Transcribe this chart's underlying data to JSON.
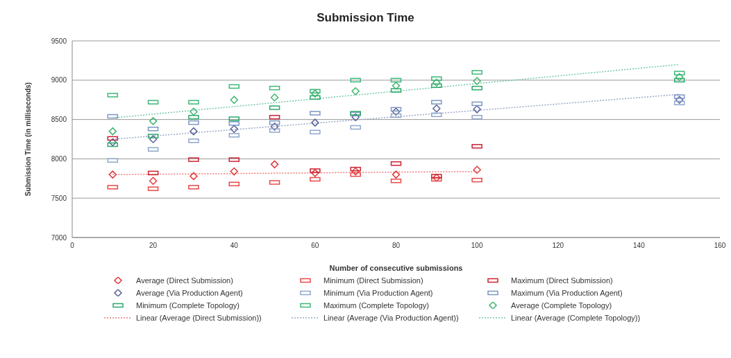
{
  "chart_data": {
    "type": "scatter",
    "title": "Submission Time",
    "xlabel": "Number of consecutive submissions",
    "ylabel": "Submission Time (in milliseconds)",
    "xlim": [
      0,
      160
    ],
    "xticks": [
      0,
      20,
      40,
      60,
      80,
      100,
      120,
      140,
      160
    ],
    "ylim": [
      7000,
      9500
    ],
    "yticks": [
      7000,
      7500,
      8000,
      8500,
      9000,
      9500
    ],
    "grid": "y",
    "legend": "bottom",
    "x": [
      10,
      20,
      30,
      40,
      50,
      60,
      70,
      80,
      90,
      100,
      150
    ],
    "series": [
      {
        "name": "Average (Direct Submission)",
        "marker": "diamond",
        "color": "#e03a3a",
        "values": [
          7800,
          7720,
          7780,
          7840,
          7930,
          7820,
          7840,
          7800,
          7760,
          7860,
          null
        ]
      },
      {
        "name": "Minimum (Direct Submission)",
        "marker": "square",
        "color": "#e84848",
        "values": [
          7640,
          7620,
          7640,
          7680,
          7700,
          7740,
          7800,
          7720,
          7740,
          7730,
          null
        ]
      },
      {
        "name": "Maximum (Direct Submission)",
        "marker": "square",
        "color": "#cc2030",
        "values": [
          8260,
          7820,
          7990,
          7990,
          8530,
          7850,
          7870,
          7940,
          7780,
          8160,
          null
        ]
      },
      {
        "name": "Average (Via Production Agent)",
        "marker": "diamond",
        "color": "#5a6096",
        "values": [
          8210,
          8250,
          8350,
          8380,
          8410,
          8460,
          8530,
          8600,
          8640,
          8630,
          8750
        ]
      },
      {
        "name": "Minimum (Via Production Agent)",
        "marker": "square",
        "color": "#8ea6cc",
        "values": [
          7980,
          8120,
          8230,
          8300,
          8360,
          8340,
          8400,
          8550,
          8560,
          8530,
          8710
        ]
      },
      {
        "name": "Maximum (Via Production Agent)",
        "marker": "square",
        "color": "#7a96c4",
        "values": [
          8540,
          8380,
          8460,
          8450,
          8460,
          8580,
          8570,
          8630,
          8720,
          8700,
          8790
        ]
      },
      {
        "name": "Minimum (Complete Topology)",
        "marker": "square",
        "color": "#2aa86a",
        "values": [
          8180,
          8290,
          8530,
          8510,
          8650,
          8780,
          8580,
          8870,
          8930,
          8900,
          9000
        ]
      },
      {
        "name": "Maximum  (Complete Topology)",
        "marker": "square",
        "color": "#3cb878",
        "values": [
          8810,
          8720,
          8720,
          8920,
          8900,
          8860,
          9000,
          9000,
          9020,
          9100,
          9090
        ]
      },
      {
        "name": "Average  (Complete Topology)",
        "marker": "diamond",
        "color": "#40b46e",
        "values": [
          8350,
          8480,
          8600,
          8750,
          8780,
          8830,
          8860,
          8930,
          8970,
          8990,
          9040
        ]
      },
      {
        "name": "Linear (Average (Direct Submission))",
        "type": "line",
        "line_style": "dotted",
        "color": "#f07878",
        "x": [
          10,
          100
        ],
        "values": [
          7800,
          7840
        ]
      },
      {
        "name": "Linear (Average (Via Production Agent))",
        "type": "line",
        "line_style": "dotted",
        "color": "#98a6c8",
        "x": [
          10,
          150
        ],
        "values": [
          8250,
          8820
        ]
      },
      {
        "name": "Linear (Average  (Complete Topology))",
        "type": "line",
        "line_style": "dotted",
        "color": "#70c8a8",
        "x": [
          10,
          150
        ],
        "values": [
          8520,
          9200
        ]
      }
    ]
  }
}
